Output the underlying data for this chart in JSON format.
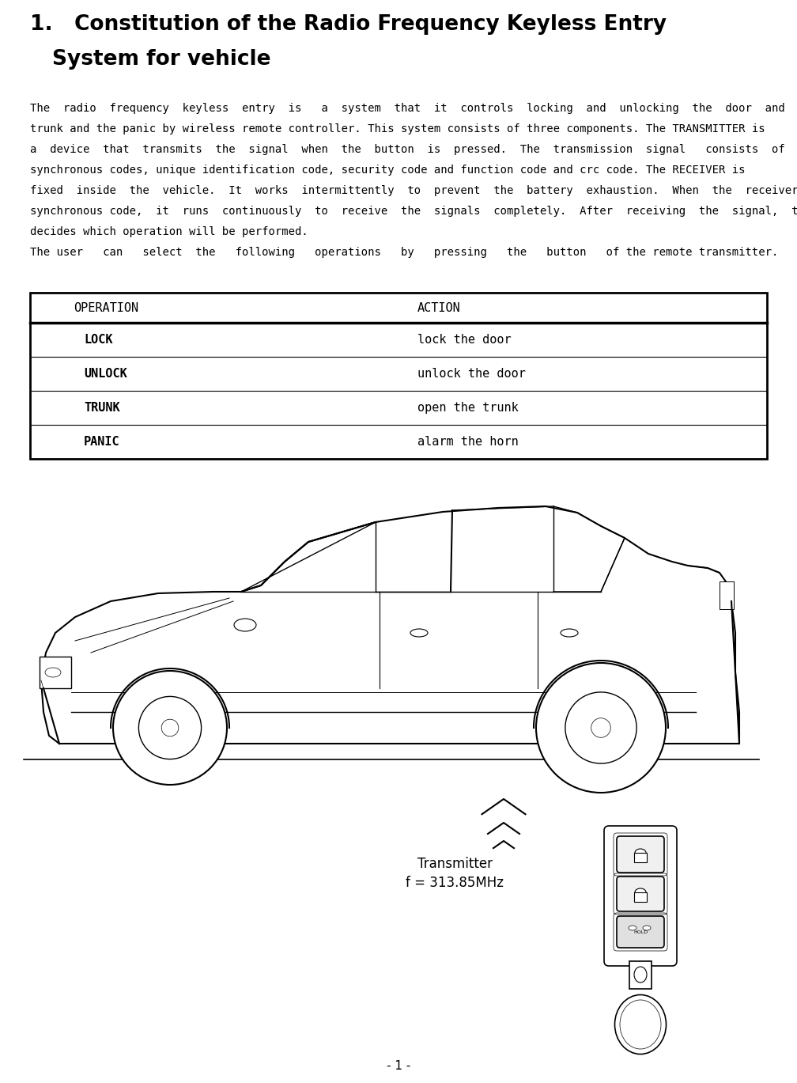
{
  "title_line1": "1.   Constitution of the Radio Frequency Keyless Entry",
  "title_line2": "     System for vehicle",
  "body_paragraphs": [
    "The  radio  frequency  keyless  entry  is   a  system  that  it  controls  locking  and  unlocking  the  door  and  the",
    "trunk and the panic by wireless remote controller. This system consists of three components. The TRANSMITTER is",
    "a  device  that  transmits  the  signal  when  the  button  is  pressed.  The  transmission  signal   consists  of  several",
    "synchronous codes, unique identification code, security code and function code and crc code. The RECEIVER is",
    "fixed  inside  the  vehicle.  It  works  intermittently  to  prevent  the  battery  exhaustion.  When  the  receiver  detects  the",
    "synchronous code,  it  runs  continuously  to  receive  the  signals  completely.  After  receiving  the  signal,  the  receiver",
    "decides which operation will be performed.",
    "The user   can   select  the   following   operations   by   pressing   the   button   of the remote transmitter."
  ],
  "table_header": [
    "OPERATION",
    "ACTION"
  ],
  "table_rows": [
    [
      "LOCK",
      "lock the door"
    ],
    [
      "UNLOCK",
      "unlock the door"
    ],
    [
      "TRUNK",
      "open the trunk"
    ],
    [
      "PANIC",
      "alarm the horn"
    ]
  ],
  "transmitter_label": "Transmitter",
  "frequency_label": "f = 313.85MHz",
  "page_number": "- 1 -",
  "bg_color": "#ffffff",
  "text_color": "#000000"
}
